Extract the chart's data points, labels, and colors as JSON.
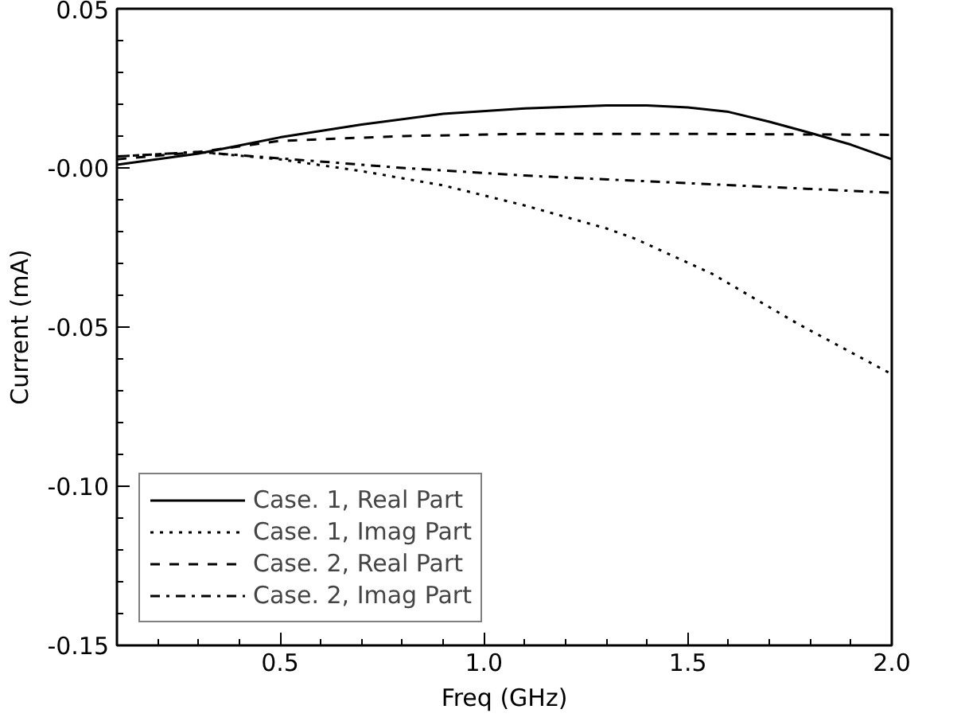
{
  "chart_data": {
    "type": "line",
    "xlabel": "Freq (GHz)",
    "ylabel": "Current (mA)",
    "xlim": [
      0.1,
      2.0
    ],
    "ylim": [
      -0.15,
      0.05
    ],
    "xticks": [
      {
        "value": 0.5,
        "label": "0.5"
      },
      {
        "value": 1.0,
        "label": "1.0"
      },
      {
        "value": 1.5,
        "label": "1.5"
      },
      {
        "value": 2.0,
        "label": "2.0"
      }
    ],
    "yticks": [
      {
        "value": -0.15,
        "label": "-0.15"
      },
      {
        "value": -0.1,
        "label": "-0.10"
      },
      {
        "value": -0.05,
        "label": "-0.05"
      },
      {
        "value": 0,
        "label": "-0.00"
      },
      {
        "value": 0.05,
        "label": "0.05"
      }
    ],
    "grid": false,
    "legend": "bottom left",
    "marker": "none",
    "series": [
      {
        "name": "Case. 1, Real Part",
        "color": "#000000",
        "line_style": "solid",
        "x": [
          0.1,
          0.3,
          0.5,
          0.7,
          0.9,
          1.1,
          1.3,
          1.4,
          1.5,
          1.6,
          1.7,
          1.8,
          1.9,
          2.0
        ],
        "values": [
          0.001,
          0.0045,
          0.0096,
          0.0136,
          0.017,
          0.0187,
          0.0196,
          0.0196,
          0.019,
          0.0176,
          0.0145,
          0.011,
          0.0073,
          0.0027
        ]
      },
      {
        "name": "Case. 1, Imag Part",
        "color": "#000000",
        "line_style": "dotted",
        "x": [
          0.1,
          0.3,
          0.5,
          0.7,
          0.9,
          1.1,
          1.3,
          1.37,
          1.56,
          1.77,
          2.0
        ],
        "values": [
          0.0036,
          0.005,
          0.0027,
          -0.001,
          -0.0055,
          -0.0118,
          -0.019,
          -0.0222,
          -0.0333,
          -0.049,
          -0.0648
        ]
      },
      {
        "name": "Case. 2, Real Part",
        "color": "#000000",
        "line_style": "dashed",
        "x": [
          0.1,
          0.3,
          0.5,
          0.8,
          1.1,
          1.5,
          2.0
        ],
        "values": [
          0.0027,
          0.005,
          0.0085,
          0.01,
          0.0107,
          0.0107,
          0.0104
        ]
      },
      {
        "name": "Case. 2, Imag Part",
        "color": "#000000",
        "line_style": "dashdot",
        "x": [
          0.1,
          0.3,
          0.5,
          0.8,
          1.1,
          1.4,
          1.7,
          2.0
        ],
        "values": [
          0.0036,
          0.005,
          0.003,
          0.0,
          -0.0024,
          -0.0042,
          -0.006,
          -0.0078
        ]
      }
    ]
  }
}
